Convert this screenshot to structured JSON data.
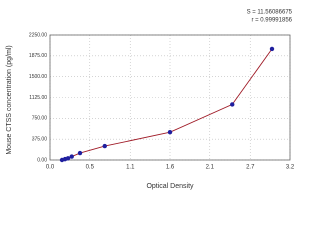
{
  "chart_data": {
    "type": "line",
    "annotations": [
      "S = 11.56086675",
      "r = 0.99991856"
    ],
    "x_label": "Optical Density",
    "y_label": "Mouse CTSS concentration (pg/ml)",
    "x": [
      0.16,
      0.2,
      0.24,
      0.29,
      0.4,
      0.73,
      1.6,
      2.43,
      2.96
    ],
    "series": [
      {
        "color": "#1f1f9f",
        "line_color": "#a01c28",
        "values": [
          0,
          15.6,
          31.25,
          62.5,
          125,
          250,
          500,
          1000,
          2000
        ]
      }
    ],
    "xlim": [
      0,
      3.2
    ],
    "xticks": [
      {
        "value": 0,
        "label": "0.0"
      },
      {
        "value": 0.53,
        "label": "0.5"
      },
      {
        "value": 1.07,
        "label": "1.1"
      },
      {
        "value": 1.6,
        "label": "1.6"
      },
      {
        "value": 2.13,
        "label": "2.1"
      },
      {
        "value": 2.67,
        "label": "2.7"
      },
      {
        "value": 3.2,
        "label": "3.2"
      }
    ],
    "ylim": [
      0,
      2250
    ],
    "yticks": [
      {
        "value": 0,
        "label": "0.00"
      },
      {
        "value": 375,
        "label": "375.00"
      },
      {
        "value": 750,
        "label": "750.00"
      },
      {
        "value": 1125,
        "label": "1125.00"
      },
      {
        "value": 1500,
        "label": "1500.00"
      },
      {
        "value": 1875,
        "label": "1875.00"
      },
      {
        "value": 2250,
        "label": "2250.00"
      }
    ],
    "grid": true
  }
}
